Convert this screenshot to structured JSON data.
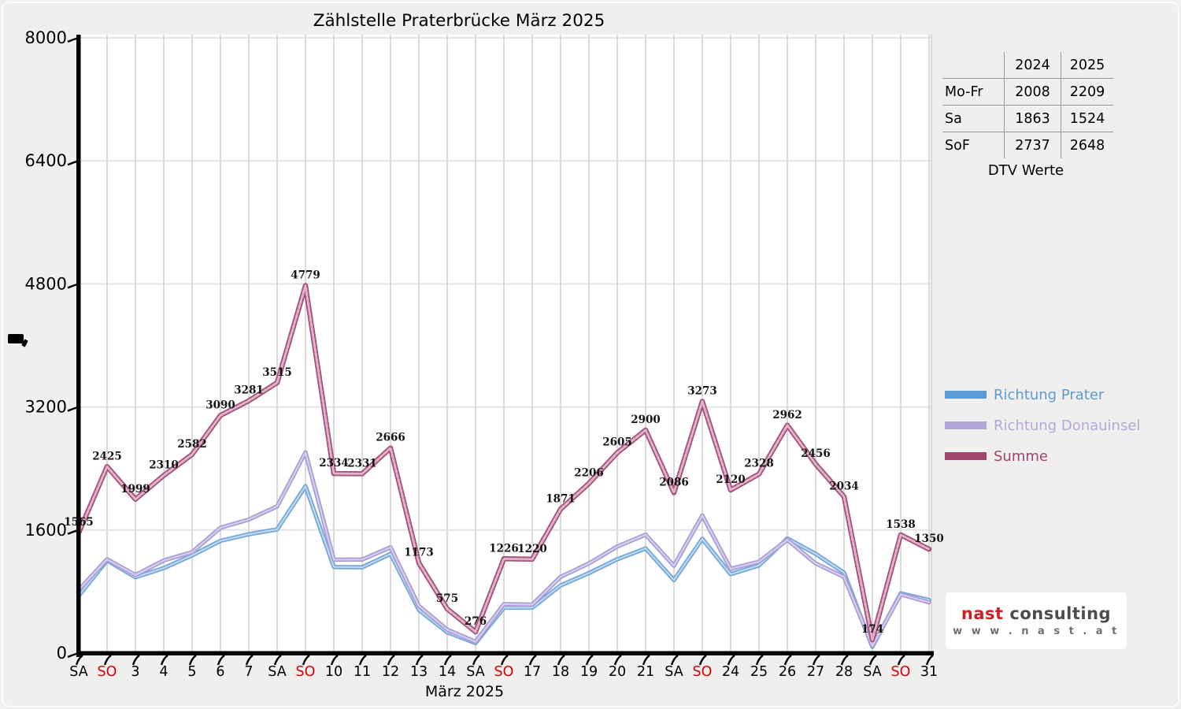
{
  "title": "Zählstelle Praterbrücke März 2025",
  "x_axis_title": "März 2025",
  "dtv_table": {
    "col_headers": [
      "2024",
      "2025"
    ],
    "rows": [
      {
        "label": "Mo-Fr",
        "y2024": "2008",
        "y2025": "2209"
      },
      {
        "label": "Sa",
        "y2024": "1863",
        "y2025": "1524"
      },
      {
        "label": "SoF",
        "y2024": "2737",
        "y2025": "2648"
      }
    ],
    "caption": "DTV Werte"
  },
  "legend": {
    "items": [
      {
        "label": "Richtung Prater",
        "color": "#5b9bd5"
      },
      {
        "label": "Richtung Donauinsel",
        "color": "#b3a7d9"
      },
      {
        "label": "Summe",
        "color": "#a0436f"
      }
    ]
  },
  "logo": {
    "brand_primary": "nast",
    "brand_secondary": "consulting",
    "url_text": "w w w . n a s t . a t",
    "brand_primary_color": "#cc2128",
    "brand_secondary_color": "#4c4c4c",
    "url_color": "#6f6f6f"
  },
  "chart_data": {
    "type": "line",
    "title": "Zählstelle Praterbrücke März 2025",
    "xlabel": "März 2025",
    "ylabel": "",
    "ylim": [
      0,
      8000
    ],
    "y_ticks": [
      0,
      1600,
      3200,
      4800,
      6400,
      8000
    ],
    "grid": true,
    "legend_position": "right",
    "x_labels": [
      "SA",
      "SO",
      "3",
      "4",
      "5",
      "6",
      "7",
      "SA",
      "SO",
      "10",
      "11",
      "12",
      "13",
      "14",
      "SA",
      "SO",
      "17",
      "18",
      "19",
      "20",
      "21",
      "SA",
      "SO",
      "24",
      "25",
      "26",
      "27",
      "28",
      "SA",
      "SO",
      "31"
    ],
    "sunday_label_color": "#d40000",
    "weekday_label_color": "#000000",
    "series": [
      {
        "name": "Richtung Prater",
        "edge_color": "#72a5d8",
        "fill_color": "#bdd7ee",
        "labeled": false,
        "values_estimated": true,
        "values": [
          745,
          1205,
          985,
          1105,
          1270,
          1460,
          1545,
          1608,
          2170,
          1120,
          1115,
          1290,
          560,
          270,
          130,
          590,
          590,
          880,
          1040,
          1220,
          1360,
          950,
          1485,
          1025,
          1140,
          1490,
          1290,
          1045,
          80,
          775,
          690
        ]
      },
      {
        "name": "Richtung Donauinsel",
        "edge_color": "#a89dd3",
        "fill_color": "#d5cdec",
        "labeled": false,
        "values_estimated": true,
        "values": [
          820,
          1220,
          1014,
          1205,
          1312,
          1630,
          1736,
          1907,
          2609,
          1214,
          1216,
          1376,
          613,
          305,
          146,
          636,
          630,
          991,
          1166,
          1385,
          1540,
          1136,
          1788,
          1095,
          1188,
          1472,
          1166,
          989,
          94,
          763,
          660
        ]
      },
      {
        "name": "Summe",
        "edge_color": "#a4517b",
        "fill_color": "#dfb3ca",
        "labeled": true,
        "values_estimated": false,
        "values": [
          1565,
          2425,
          1999,
          2310,
          2582,
          3090,
          3281,
          3515,
          4779,
          2334,
          2331,
          2666,
          1173,
          575,
          276,
          1226,
          1220,
          1871,
          2206,
          2605,
          2900,
          2086,
          3273,
          2120,
          2328,
          2962,
          2456,
          2034,
          174,
          1538,
          1350
        ]
      }
    ]
  }
}
